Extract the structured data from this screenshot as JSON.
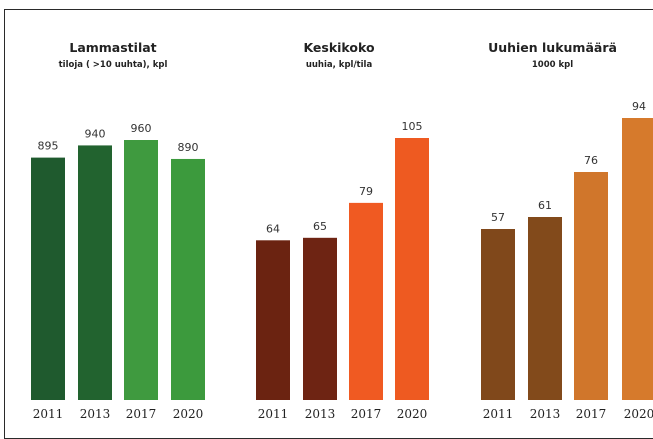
{
  "chart_data": [
    {
      "type": "bar",
      "title": "Lammastilat",
      "subtitle": "tiloja ( >10 uuhta), kpl",
      "categories": [
        "2011",
        "2013",
        "2017",
        "2020"
      ],
      "values": [
        895,
        940,
        960,
        890
      ],
      "ylim": [
        0,
        1000
      ],
      "colors": [
        "#1f5a2e",
        "#22632f",
        "#3f9a3f",
        "#3c9a3d"
      ],
      "grid": false
    },
    {
      "type": "bar",
      "title": "Keskikoko",
      "subtitle": "uuhia, kpl/tila",
      "categories": [
        "2011",
        "2013",
        "2017",
        "2020"
      ],
      "values": [
        64,
        65,
        79,
        105
      ],
      "ylim": [
        0,
        120
      ],
      "colors": [
        "#6b2311",
        "#6e2413",
        "#f05a22",
        "#ee5a21"
      ],
      "grid": false
    },
    {
      "type": "bar",
      "title": "Uuhien lukumäärä",
      "subtitle": "1000 kpl",
      "categories": [
        "2011",
        "2013",
        "2017",
        "2020"
      ],
      "values": [
        57,
        61,
        76,
        94
      ],
      "ylim": [
        0,
        110
      ],
      "colors": [
        "#80481b",
        "#824a1b",
        "#d0762b",
        "#d67a2c"
      ],
      "grid": false
    }
  ]
}
